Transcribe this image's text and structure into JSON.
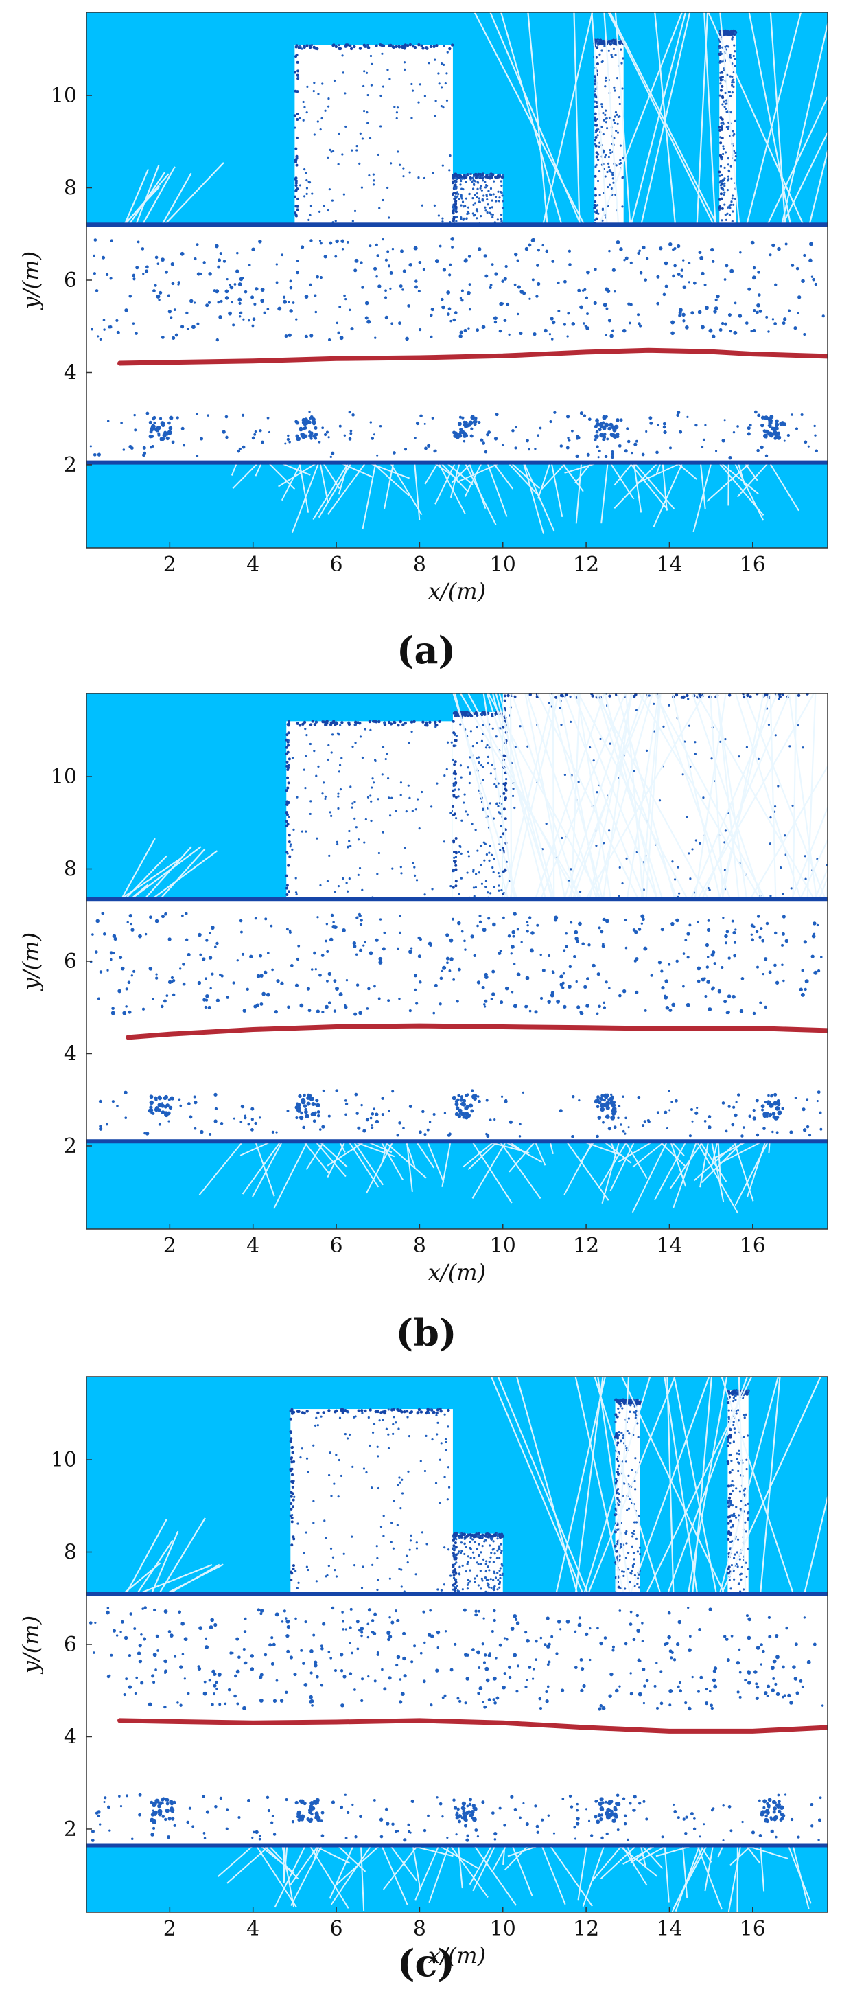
{
  "colors": {
    "occupied_background": "#00bfff",
    "free_space": "#ffffff",
    "obstacle_points": "#1f5fbf",
    "wall_edge": "#1545a8",
    "trajectory": "#b52a35",
    "ray_lines": "#e9f7ff"
  },
  "chart_data": [
    {
      "type": "scatter",
      "caption": "(a)",
      "xlabel": "x/(m)",
      "ylabel": "y/(m)",
      "xlim": [
        0,
        17.8
      ],
      "ylim": [
        0.2,
        11.8
      ],
      "x_ticks": [
        2,
        4,
        6,
        8,
        10,
        12,
        14,
        16
      ],
      "y_ticks": [
        2,
        4,
        6,
        8,
        10
      ],
      "upper_wall_y": 7.2,
      "lower_wall_y": 2.05,
      "blocks": [
        {
          "x0": 5.0,
          "x1": 8.8,
          "y_top": 11.1
        },
        {
          "x0": 8.8,
          "x1": 10.0,
          "y_top": 8.3
        },
        {
          "x0": 12.2,
          "x1": 12.9,
          "y_top": 11.2
        },
        {
          "x0": 15.2,
          "x1": 15.6,
          "y_top": 11.4
        }
      ],
      "trajectory": {
        "x": [
          0.8,
          2,
          4,
          6,
          8,
          10,
          12,
          13.5,
          15,
          16,
          17.8
        ],
        "y": [
          4.2,
          4.22,
          4.25,
          4.3,
          4.32,
          4.36,
          4.44,
          4.48,
          4.45,
          4.4,
          4.35
        ]
      }
    },
    {
      "type": "scatter",
      "caption": "(b)",
      "xlabel": "x/(m)",
      "ylabel": "y/(m)",
      "xlim": [
        0,
        17.8
      ],
      "ylim": [
        0.2,
        11.8
      ],
      "x_ticks": [
        2,
        4,
        6,
        8,
        10,
        12,
        14,
        16
      ],
      "y_ticks": [
        2,
        4,
        6,
        8,
        10
      ],
      "upper_wall_y": 7.35,
      "lower_wall_y": 2.1,
      "blocks": [
        {
          "x0": 4.8,
          "x1": 8.8,
          "y_top": 11.2
        },
        {
          "x0": 8.8,
          "x1": 10.0,
          "y_top": 11.4
        },
        {
          "x0": 10.0,
          "x1": 17.8,
          "y_top": 11.8
        }
      ],
      "trajectory": {
        "x": [
          1.0,
          2,
          4,
          6,
          8,
          10,
          12,
          14,
          16,
          17.8
        ],
        "y": [
          4.35,
          4.42,
          4.52,
          4.58,
          4.6,
          4.58,
          4.56,
          4.54,
          4.55,
          4.5
        ]
      }
    },
    {
      "type": "scatter",
      "caption": "(c)",
      "xlabel": "x/(m)",
      "ylabel": "y/(m)",
      "xlim": [
        0,
        17.8
      ],
      "ylim": [
        0.2,
        11.8
      ],
      "x_ticks": [
        2,
        4,
        6,
        8,
        10,
        12,
        14,
        16
      ],
      "y_ticks": [
        2,
        4,
        6,
        8,
        10
      ],
      "upper_wall_y": 7.1,
      "lower_wall_y": 1.65,
      "blocks": [
        {
          "x0": 4.9,
          "x1": 8.8,
          "y_top": 11.1
        },
        {
          "x0": 8.8,
          "x1": 10.0,
          "y_top": 8.4
        },
        {
          "x0": 12.7,
          "x1": 13.3,
          "y_top": 11.3
        },
        {
          "x0": 15.4,
          "x1": 15.9,
          "y_top": 11.5
        }
      ],
      "trajectory": {
        "x": [
          0.8,
          2,
          4,
          6,
          8,
          10,
          12,
          14,
          16,
          17.8
        ],
        "y": [
          4.35,
          4.33,
          4.3,
          4.32,
          4.35,
          4.3,
          4.2,
          4.12,
          4.12,
          4.2
        ]
      }
    }
  ]
}
